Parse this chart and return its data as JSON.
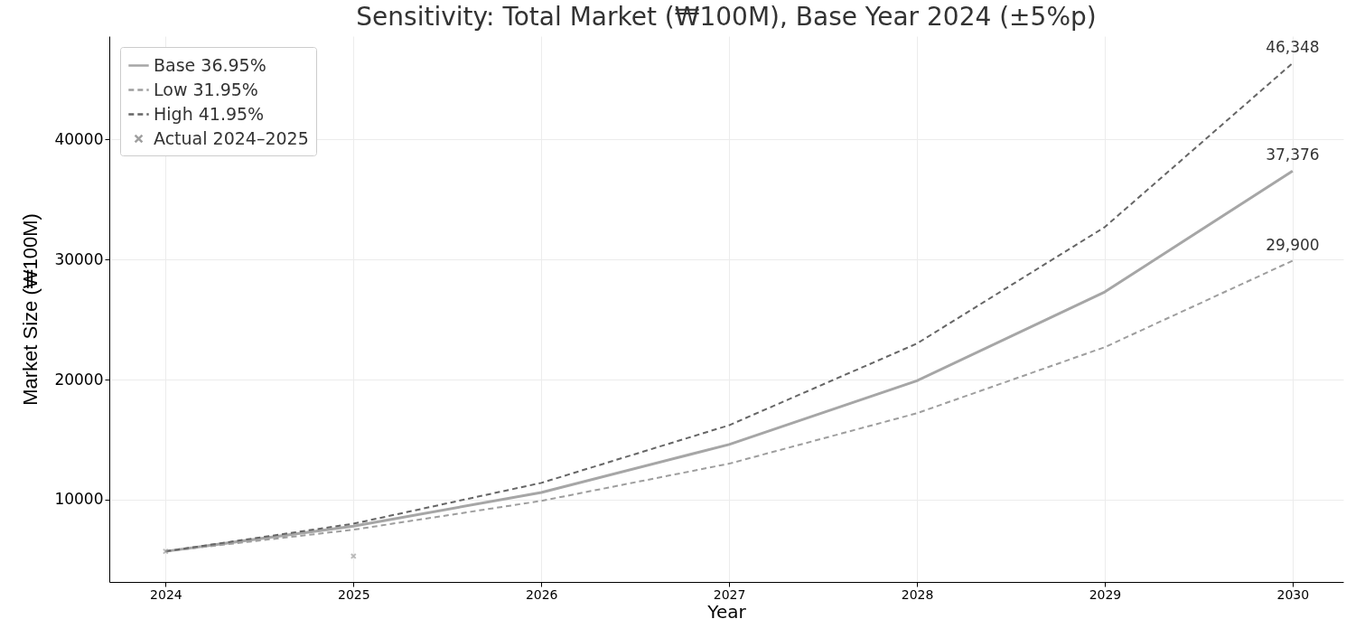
{
  "chart_data": {
    "type": "line",
    "title": "Sensitivity: Total Market (₩100M), Base Year 2024 (±5%p)",
    "xlabel": "Year",
    "ylabel": "Market Size (₩100M)",
    "x": [
      2024,
      2025,
      2026,
      2027,
      2028,
      2029,
      2030
    ],
    "series": [
      {
        "name": "Base 36.95%",
        "color": "#a6a6a6",
        "line_style": "solid",
        "values": [
          5700,
          7800,
          10600,
          14600,
          19900,
          27300,
          37376
        ],
        "value_labels": [
          null,
          null,
          null,
          null,
          null,
          null,
          "37,376"
        ]
      },
      {
        "name": "Low 31.95%",
        "color": "#9e9e9e",
        "line_style": "dashed",
        "values": [
          5700,
          7500,
          9900,
          13000,
          17200,
          22700,
          29900
        ],
        "value_labels": [
          null,
          null,
          null,
          null,
          null,
          null,
          "29,900"
        ]
      },
      {
        "name": "High 41.95%",
        "color": "#666666",
        "line_style": "dashed",
        "values": [
          5700,
          8000,
          11400,
          16200,
          23000,
          32700,
          46348
        ],
        "value_labels": [
          null,
          null,
          null,
          null,
          null,
          null,
          "46,348"
        ]
      },
      {
        "name": "Actual 2024–2025",
        "type": "scatter",
        "color": "#a0a0a0",
        "marker": "cross",
        "x": [
          2024,
          2025
        ],
        "values": [
          5700,
          5300
        ]
      }
    ],
    "xlim": [
      2023.7,
      2030.27
    ],
    "xticks": [
      2024,
      2025,
      2026,
      2027,
      2028,
      2029,
      2030
    ],
    "ylim": [
      3150,
      48600
    ],
    "yticks": [
      10000,
      20000,
      30000,
      40000
    ],
    "grid": true,
    "legend": "top left"
  }
}
